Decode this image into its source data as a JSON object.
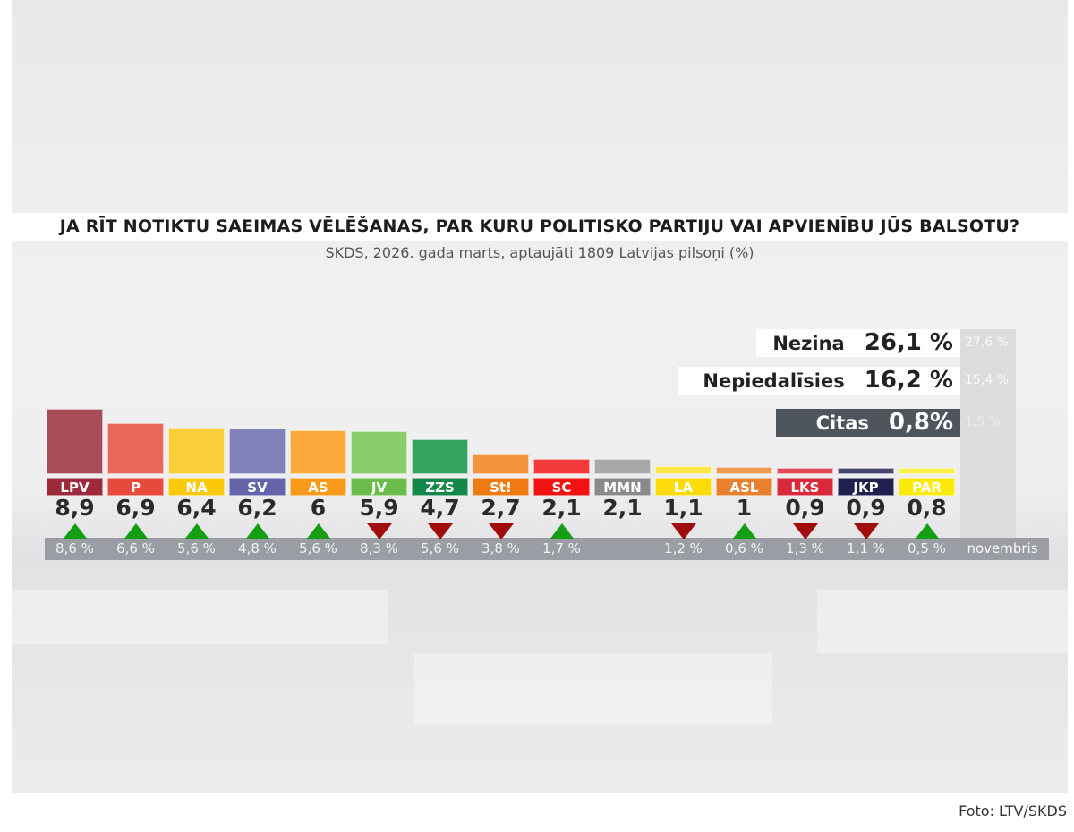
{
  "chart_data": {
    "type": "bar",
    "title": "JA RĪT NOTIKTU SAEIMAS VĒLĒŠANAS, PAR KURU POLITISKO PARTIJU VAI APVIENĪBU JŪS BALSOTU?",
    "subtitle": "SKDS, 2026. gada marts, aptaujāti 1809 Latvijas pilsoņi (%)",
    "categories": [
      "LPV",
      "P",
      "NA",
      "SV",
      "AS",
      "JV",
      "ZZS",
      "St!",
      "SC",
      "MMN",
      "LA",
      "ASL",
      "LKS",
      "JKP",
      "PAR"
    ],
    "values": [
      8.9,
      6.9,
      6.4,
      6.2,
      6,
      5.9,
      4.7,
      2.7,
      2.1,
      2.1,
      1.1,
      1,
      0.9,
      0.9,
      0.8
    ],
    "value_labels": [
      "8,9",
      "6,9",
      "6,4",
      "6,2",
      "6",
      "5,9",
      "4,7",
      "2,7",
      "2,1",
      "2,1",
      "1,1",
      "1",
      "0,9",
      "0,9",
      "0,8"
    ],
    "trend": [
      "up",
      "up",
      "up",
      "up",
      "up",
      "down",
      "down",
      "down",
      "up",
      "",
      "down",
      "up",
      "down",
      "down",
      "up"
    ],
    "previous_labels": [
      "8,6 %",
      "6,6 %",
      "5,6 %",
      "4,8 %",
      "5,6 %",
      "8,3 %",
      "5,6 %",
      "3,8 %",
      "1,7 %",
      "",
      "1,2 %",
      "0,6 %",
      "1,3 %",
      "1,1 %",
      "0,5 %"
    ],
    "previous_period": "novembris",
    "colors": [
      "#a84c58",
      "#e8675a",
      "#f8cf3a",
      "#8080bb",
      "#f9aa3a",
      "#8acb6a",
      "#34a55f",
      "#f2923a",
      "#f43a3a",
      "#a9a9a9",
      "#fbe74a",
      "#ee9a50",
      "#e24a5a",
      "#45456b",
      "#fbef4a"
    ],
    "label_colors": [
      "#9c2a3a",
      "#e84a3a",
      "#fbc90a",
      "#6464aa",
      "#fa9a1a",
      "#6abd4a",
      "#14884a",
      "#f07a12",
      "#f21212",
      "#8a8a8a",
      "#fbdc0a",
      "#e88030",
      "#d8283a",
      "#20204e",
      "#fbea0a"
    ],
    "others": [
      {
        "label": "Nezina",
        "value": "26,1 %",
        "previous": "27,6 %"
      },
      {
        "label": "Nepiedalīsies",
        "value": "16,2 %",
        "previous": "15,4 %"
      },
      {
        "label": "Citas",
        "value": "0,8%",
        "previous": "1,5 %"
      }
    ],
    "ylabel": "",
    "xlabel": "",
    "ylim": [
      0,
      10
    ]
  },
  "caption": "Foto: LTV/SKDS"
}
